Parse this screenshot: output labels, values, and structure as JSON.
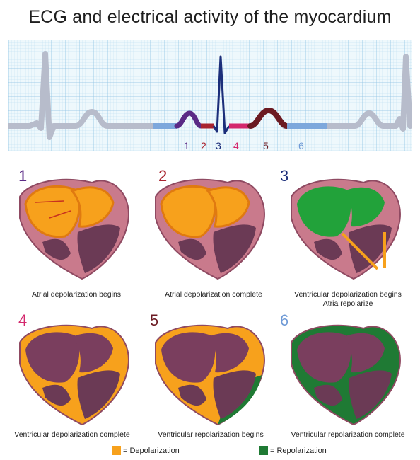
{
  "title": "ECG and electrical activity of the myocardium",
  "colors": {
    "depolarization": "#f7a11c",
    "repolarization": "#1f7a34",
    "myocardium": "#c97a8c",
    "chamber": "#6b3a55"
  },
  "ecg_labels": [
    {
      "text": "1",
      "color": "#5b2a86"
    },
    {
      "text": "2",
      "color": "#a8232e"
    },
    {
      "text": "3",
      "color": "#1c2e7a"
    },
    {
      "text": "4",
      "color": "#d4286d"
    },
    {
      "text": "5",
      "color": "#6b1a22"
    },
    {
      "text": "6",
      "color": "#6f9ad6"
    }
  ],
  "panels": [
    {
      "number": "1",
      "color": "#5b2a86",
      "caption": "Atrial depolarization begins",
      "caption2": ""
    },
    {
      "number": "2",
      "color": "#a8232e",
      "caption": "Atrial depolarization complete",
      "caption2": ""
    },
    {
      "number": "3",
      "color": "#1c2e7a",
      "caption": "Ventricular depolarization begins",
      "caption2": "Atria repolarize"
    },
    {
      "number": "4",
      "color": "#d4286d",
      "caption": "Ventricular depolarization complete",
      "caption2": ""
    },
    {
      "number": "5",
      "color": "#6b1a22",
      "caption": "Ventricular repolarization begins",
      "caption2": ""
    },
    {
      "number": "6",
      "color": "#6f9ad6",
      "caption": "Ventricular repolarization complete",
      "caption2": ""
    }
  ],
  "legend": {
    "depolarization": "= Depolarization",
    "repolarization": "= Repolarization"
  }
}
